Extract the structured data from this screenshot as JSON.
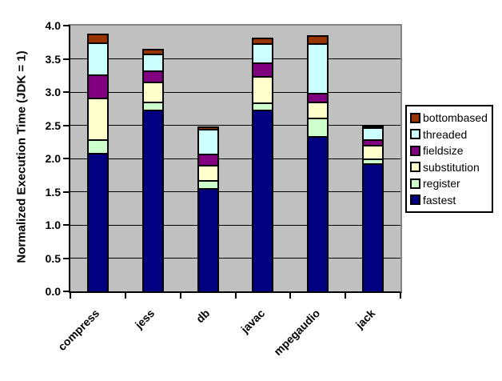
{
  "chart_data": {
    "type": "bar",
    "stacked": true,
    "title": "",
    "ylabel": "Normalized Execution Time (JDK = 1)",
    "xlabel": "",
    "categories": [
      "compress",
      "jess",
      "db",
      "javac",
      "mpegaudio",
      "jack"
    ],
    "series": [
      {
        "name": "fastest",
        "color": "#000080",
        "values": [
          2.08,
          2.74,
          1.55,
          2.74,
          2.34,
          1.93
        ]
      },
      {
        "name": "register",
        "color": "#CCFFCC",
        "values": [
          0.21,
          0.12,
          0.13,
          0.1,
          0.27,
          0.07
        ]
      },
      {
        "name": "substitution",
        "color": "#FFFFCC",
        "values": [
          0.63,
          0.3,
          0.22,
          0.4,
          0.24,
          0.2
        ]
      },
      {
        "name": "fieldsize",
        "color": "#800080",
        "values": [
          0.34,
          0.17,
          0.17,
          0.2,
          0.14,
          0.09
        ]
      },
      {
        "name": "threaded",
        "color": "#CCFFFF",
        "values": [
          0.49,
          0.25,
          0.37,
          0.3,
          0.75,
          0.19
        ]
      },
      {
        "name": "bottombased",
        "color": "#993300",
        "values": [
          0.13,
          0.07,
          0.04,
          0.08,
          0.11,
          0.02
        ]
      }
    ],
    "legend": [
      "bottombased",
      "threaded",
      "fieldsize",
      "substitution",
      "register",
      "fastest"
    ],
    "legend_position": "right",
    "ylim": [
      0,
      4
    ],
    "ytick_step": 0.5,
    "yticks": [
      "0.0",
      "0.5",
      "1.0",
      "1.5",
      "2.0",
      "2.5",
      "3.0",
      "3.5",
      "4.0"
    ],
    "grid": true,
    "colors": {
      "plot_bg": "#C0C0C0",
      "plot_border": "#848484",
      "axis": "#000000",
      "gridline": "#000000",
      "background": "#FFFFFF"
    }
  }
}
